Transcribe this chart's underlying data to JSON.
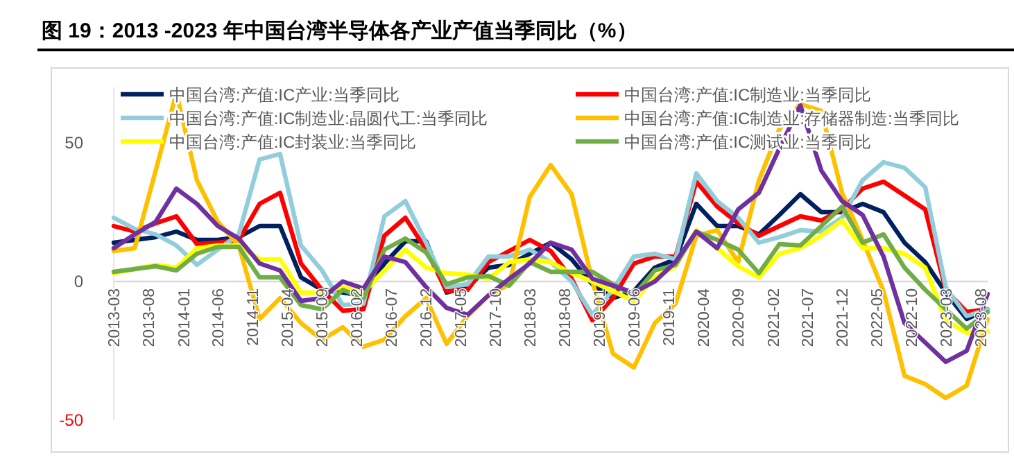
{
  "chart_data": {
    "type": "line",
    "title": "图 19：2013 -2023 年中国台湾半导体各产业产值当季同比（%）",
    "x": [
      "2013-03",
      "2013-06",
      "2013-09",
      "2013-12",
      "2014-03",
      "2014-06",
      "2014-09",
      "2014-12",
      "2015-03",
      "2015-06",
      "2015-09",
      "2015-12",
      "2016-03",
      "2016-06",
      "2016-09",
      "2016-12",
      "2017-03",
      "2017-06",
      "2017-09",
      "2017-12",
      "2018-03",
      "2018-06",
      "2018-09",
      "2018-12",
      "2019-03",
      "2019-06",
      "2019-09",
      "2019-12",
      "2020-03",
      "2020-06",
      "2020-09",
      "2020-12",
      "2021-03",
      "2021-06",
      "2021-09",
      "2021-12",
      "2022-03",
      "2022-06",
      "2022-09",
      "2022-12",
      "2023-03",
      "2023-06",
      "2023-09"
    ],
    "series": [
      {
        "name": "中国台湾:产值:IC产业:当季同比",
        "color": "#002060",
        "values": [
          14,
          15,
          16,
          18,
          15,
          15,
          16,
          20,
          20,
          1.5,
          -3,
          -4,
          -5,
          6.5,
          14.5,
          14.5,
          -4,
          -2,
          5,
          6,
          10,
          14,
          8,
          -1,
          -6,
          -3.5,
          5,
          8,
          28,
          20,
          20,
          17,
          24,
          31.5,
          25,
          25,
          28,
          25,
          14,
          7,
          -4,
          -13.5,
          -10
        ]
      },
      {
        "name": "中国台湾:产值:IC制造业:当季同比",
        "color": "#ff0000",
        "values": [
          20,
          18,
          21,
          23.5,
          13.5,
          14,
          15,
          28,
          32,
          6.5,
          -3,
          -10.5,
          -10,
          16.5,
          23,
          11.5,
          -3.5,
          -3,
          7,
          11,
          15,
          11,
          1,
          -14,
          -6,
          6.5,
          9,
          9,
          36,
          27,
          21,
          16.5,
          20,
          23.5,
          22,
          26,
          33.5,
          36,
          31,
          26,
          -3,
          -11,
          -10
        ]
      },
      {
        "name": "中国台湾:产值:IC制造业:晶圆代工:当季同比",
        "color": "#92cddc",
        "values": [
          23,
          19,
          17,
          13,
          6,
          11.5,
          17,
          44,
          46,
          13,
          4,
          -8.5,
          -8,
          23.5,
          29,
          14,
          -2,
          -1,
          9,
          9,
          11.5,
          7,
          0,
          -12,
          -3,
          9,
          10,
          8,
          39,
          29,
          23,
          14,
          16,
          18.5,
          18,
          23,
          36.5,
          43,
          41,
          34,
          -2,
          -12.5,
          -10
        ]
      },
      {
        "name": "中国台湾:产值:IC制造业:存储器制造:当季同比",
        "color": "#ffc000",
        "values": [
          11,
          12,
          40,
          68,
          36.5,
          21.5,
          13,
          -13.5,
          -6,
          -15,
          -21,
          -16.5,
          -23.5,
          -21,
          -12.5,
          -6,
          -22.5,
          -12.5,
          -5,
          -1,
          30.5,
          42,
          31.5,
          0,
          -26,
          -31,
          -15,
          -8,
          16.5,
          18.5,
          7,
          36.5,
          55,
          64,
          61.5,
          32,
          15,
          -3.5,
          -34,
          -37,
          -42,
          -37.5,
          -13.5
        ]
      },
      {
        "name": "中国台湾:产值:IC封装业:当季同比",
        "color": "#ffff00",
        "values": [
          3,
          4.5,
          6,
          5,
          12,
          13,
          13,
          8,
          8,
          -4,
          -4,
          -2,
          -4,
          4,
          11.5,
          5,
          3,
          2.5,
          1,
          7,
          8,
          7,
          3,
          0,
          -3.5,
          -7,
          1.5,
          5.5,
          18.5,
          12,
          5.5,
          1.5,
          10,
          12,
          16.5,
          22,
          12,
          12,
          10,
          5,
          -14,
          -18.5,
          -18
        ]
      },
      {
        "name": "中国台湾:产值:IC测试业:当季同比",
        "color": "#70ad47",
        "values": [
          3.5,
          4.5,
          5.5,
          4,
          10,
          12.5,
          12.5,
          1.5,
          1.5,
          -8.5,
          -10,
          -3,
          -6,
          11.5,
          15.5,
          10.5,
          -1,
          1.5,
          2,
          -1.5,
          7,
          3.5,
          3.5,
          3.5,
          -1,
          -5,
          4,
          6,
          18,
          15,
          11.5,
          3,
          13.5,
          13,
          20,
          27,
          14,
          17,
          5,
          -3,
          -10,
          -17,
          -11
        ]
      },
      {
        "color": "#7030a0",
        "values": [
          12,
          17,
          21.5,
          33.5,
          28,
          20,
          15.5,
          6.5,
          4,
          -7,
          -6,
          0,
          -2.5,
          9,
          7,
          -2,
          -9.5,
          -12,
          -5,
          1,
          6.5,
          14,
          11.5,
          1,
          -1.5,
          -4,
          0,
          7,
          18,
          12,
          26,
          32,
          48,
          63.5,
          40,
          29,
          24,
          9,
          -15,
          -22,
          -29,
          -25,
          -4.5
        ]
      }
    ],
    "xlim": [
      "2013-03",
      "2023-09"
    ],
    "xticks": [
      "2013-03",
      "2013-08",
      "2014-01",
      "2014-06",
      "2014-11",
      "2015-04",
      "2015-09",
      "2016-02",
      "2016-07",
      "2016-12",
      "2017-05",
      "2017-10",
      "2018-03",
      "2018-08",
      "2019-01",
      "2019-06",
      "2019-11",
      "2020-04",
      "2020-09",
      "2021-02",
      "2021-07",
      "2021-12",
      "2022-05",
      "2022-10",
      "2023-03",
      "2023-08"
    ],
    "ylim": [
      -50,
      70
    ],
    "yticks": [
      -50,
      0,
      50
    ],
    "legend": "top",
    "line_style": "solid",
    "marker": "none"
  }
}
